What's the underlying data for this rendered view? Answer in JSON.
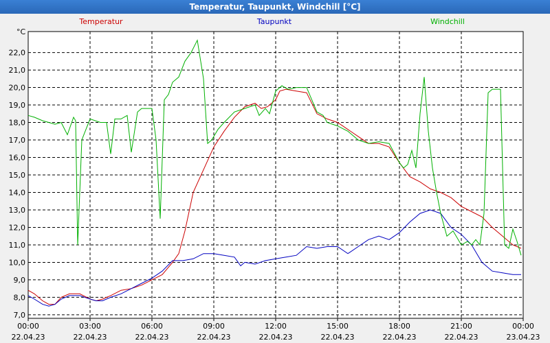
{
  "window_title": "Temperatur, Taupunkt, Windchill [°C]",
  "chart_data": {
    "type": "line",
    "title": "Temperatur, Taupunkt, Windchill [°C]",
    "ylabel": "°C",
    "xlabel": "",
    "ylim": [
      6.8,
      23.2
    ],
    "xlim": [
      0,
      24
    ],
    "grid": true,
    "yticks": [
      7.0,
      8.0,
      9.0,
      10.0,
      11.0,
      12.0,
      13.0,
      14.0,
      15.0,
      16.0,
      17.0,
      18.0,
      19.0,
      20.0,
      21.0,
      22.0
    ],
    "ytick_labels": [
      "7,0",
      "8,0",
      "9,0",
      "10,0",
      "11,0",
      "12,0",
      "13,0",
      "14,0",
      "15,0",
      "16,0",
      "17,0",
      "18,0",
      "19,0",
      "20,0",
      "21,0",
      "22,0"
    ],
    "xticks": [
      {
        "h": 0,
        "time": "00:00",
        "date": "22.04.23"
      },
      {
        "h": 3,
        "time": "03:00",
        "date": "22.04.23"
      },
      {
        "h": 6,
        "time": "06:00",
        "date": "22.04.23"
      },
      {
        "h": 9,
        "time": "09:00",
        "date": "22.04.23"
      },
      {
        "h": 12,
        "time": "12:00",
        "date": "22.04.23"
      },
      {
        "h": 15,
        "time": "15:00",
        "date": "22.04.23"
      },
      {
        "h": 18,
        "time": "18:00",
        "date": "22.04.23"
      },
      {
        "h": 21,
        "time": "21:00",
        "date": "22.04.23"
      },
      {
        "h": 24,
        "time": "00:00",
        "date": "23.04.23"
      }
    ],
    "series": [
      {
        "name": "Temperatur",
        "color": "#cc0000",
        "x": [
          0,
          0.3,
          0.7,
          1.0,
          1.3,
          1.6,
          2.0,
          2.5,
          3.0,
          3.3,
          3.6,
          4.0,
          4.5,
          5.0,
          5.5,
          6.0,
          6.5,
          7.0,
          7.3,
          7.6,
          8.0,
          8.5,
          9.0,
          9.5,
          10.0,
          10.5,
          11.0,
          11.3,
          11.6,
          12.0,
          12.2,
          12.5,
          13.0,
          13.5,
          14.0,
          14.5,
          15.0,
          15.5,
          16.0,
          16.5,
          17.0,
          17.5,
          18.0,
          18.5,
          19.0,
          19.5,
          20.0,
          20.5,
          21.0,
          21.5,
          22.0,
          22.5,
          23.0,
          23.5,
          23.9
        ],
        "values": [
          8.4,
          8.2,
          7.8,
          7.6,
          7.6,
          8.0,
          8.2,
          8.2,
          7.9,
          7.8,
          7.9,
          8.1,
          8.4,
          8.5,
          8.7,
          9.0,
          9.3,
          10.0,
          10.5,
          11.8,
          14.0,
          15.3,
          16.6,
          17.5,
          18.3,
          18.9,
          19.1,
          18.8,
          18.9,
          19.3,
          19.8,
          19.9,
          19.8,
          19.7,
          18.5,
          18.2,
          18.0,
          17.6,
          17.2,
          16.8,
          16.8,
          16.6,
          15.7,
          14.9,
          14.6,
          14.2,
          14.0,
          13.7,
          13.2,
          12.9,
          12.6,
          12.0,
          11.5,
          11.0,
          10.8
        ]
      },
      {
        "name": "Taupunkt",
        "color": "#0000c0",
        "x": [
          0,
          0.3,
          0.7,
          1.0,
          1.3,
          1.6,
          2.0,
          2.5,
          3.0,
          3.3,
          3.6,
          4.0,
          4.5,
          5.0,
          5.5,
          6.0,
          6.5,
          7.0,
          7.5,
          8.0,
          8.5,
          9.0,
          9.5,
          10.0,
          10.3,
          10.5,
          11.0,
          11.5,
          12.0,
          12.5,
          13.0,
          13.5,
          14.0,
          14.5,
          15.0,
          15.5,
          16.0,
          16.5,
          17.0,
          17.5,
          18.0,
          18.5,
          19.0,
          19.5,
          20.0,
          20.5,
          21.0,
          21.5,
          22.0,
          22.5,
          23.0,
          23.5,
          23.9
        ],
        "values": [
          8.1,
          7.9,
          7.6,
          7.5,
          7.6,
          7.9,
          8.1,
          8.1,
          7.9,
          7.8,
          7.8,
          8.0,
          8.2,
          8.5,
          8.8,
          9.1,
          9.5,
          10.1,
          10.1,
          10.2,
          10.5,
          10.5,
          10.4,
          10.3,
          9.8,
          10.0,
          9.9,
          10.1,
          10.2,
          10.3,
          10.4,
          10.9,
          10.8,
          10.9,
          10.9,
          10.5,
          10.9,
          11.3,
          11.5,
          11.3,
          11.7,
          12.3,
          12.8,
          13.0,
          12.8,
          12.0,
          11.6,
          11.0,
          10.0,
          9.5,
          9.4,
          9.3,
          9.3
        ]
      },
      {
        "name": "Windchill",
        "color": "#00b000",
        "x": [
          0,
          0.3,
          0.7,
          1.0,
          1.3,
          1.6,
          1.9,
          2.2,
          2.3,
          2.4,
          2.6,
          3.0,
          3.5,
          3.8,
          4.0,
          4.2,
          4.5,
          4.8,
          5.0,
          5.3,
          5.5,
          6.0,
          6.2,
          6.4,
          6.6,
          6.8,
          7.0,
          7.3,
          7.6,
          7.9,
          8.2,
          8.5,
          8.7,
          8.9,
          9.0,
          9.2,
          9.5,
          10.0,
          10.5,
          11.0,
          11.2,
          11.5,
          11.7,
          12.0,
          12.3,
          12.6,
          13.0,
          13.5,
          14.0,
          14.3,
          14.5,
          15.0,
          15.5,
          16.0,
          16.5,
          17.0,
          17.5,
          18.0,
          18.2,
          18.4,
          18.6,
          18.8,
          19.0,
          19.2,
          19.4,
          19.6,
          19.8,
          20.0,
          20.3,
          20.6,
          21.0,
          21.3,
          21.5,
          21.7,
          21.9,
          22.1,
          22.3,
          22.5,
          22.7,
          22.9,
          23.1,
          23.3,
          23.5,
          23.7,
          23.9
        ],
        "values": [
          18.4,
          18.3,
          18.1,
          18.0,
          17.9,
          18.0,
          17.3,
          18.3,
          18.1,
          11.0,
          17.0,
          18.2,
          18.0,
          18.0,
          16.2,
          18.2,
          18.2,
          18.4,
          16.3,
          18.6,
          18.8,
          18.8,
          17.0,
          12.5,
          19.3,
          19.6,
          20.3,
          20.6,
          21.5,
          22.0,
          22.7,
          20.5,
          16.8,
          17.0,
          17.2,
          17.6,
          18.0,
          18.6,
          18.8,
          19.0,
          18.4,
          18.8,
          18.5,
          19.8,
          20.1,
          19.9,
          20.0,
          20.0,
          18.6,
          18.4,
          18.0,
          17.8,
          17.5,
          17.0,
          16.8,
          16.9,
          16.8,
          15.7,
          15.4,
          15.6,
          16.4,
          15.4,
          18.5,
          20.6,
          17.5,
          15.4,
          14.0,
          12.8,
          11.5,
          11.8,
          11.0,
          11.2,
          11.0,
          11.3,
          11.0,
          12.8,
          19.7,
          19.9,
          19.9,
          19.9,
          11.0,
          10.8,
          11.9,
          11.2,
          10.4
        ]
      }
    ]
  }
}
